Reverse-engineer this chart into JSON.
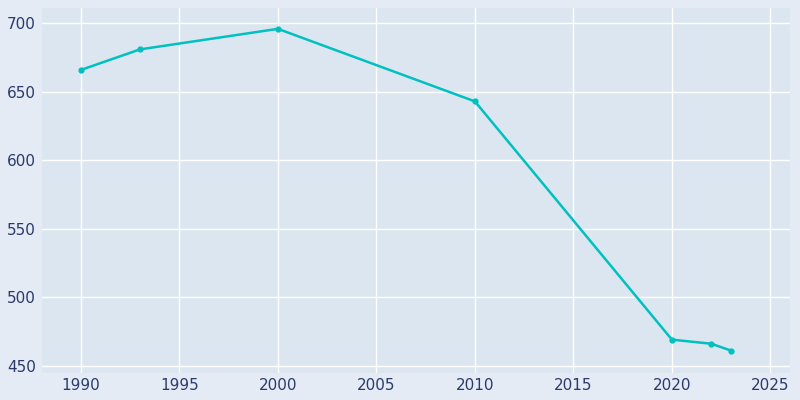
{
  "years": [
    1990,
    1993,
    2000,
    2010,
    2020,
    2022,
    2023
  ],
  "population": [
    666,
    681,
    696,
    643,
    469,
    466,
    461
  ],
  "line_color": "#00C0C0",
  "marker": "o",
  "marker_size": 3.5,
  "line_width": 1.8,
  "background_color": "#E4EBF5",
  "plot_bg_color": "#DCE6F0",
  "grid_color": "#FFFFFF",
  "xlim": [
    1988,
    2026
  ],
  "ylim": [
    445,
    712
  ],
  "yticks": [
    450,
    500,
    550,
    600,
    650,
    700
  ],
  "xticks": [
    1990,
    1995,
    2000,
    2005,
    2010,
    2015,
    2020,
    2025
  ],
  "tick_label_color": "#2B3A6B",
  "tick_fontsize": 11,
  "spine_color": "#C8D4E8"
}
